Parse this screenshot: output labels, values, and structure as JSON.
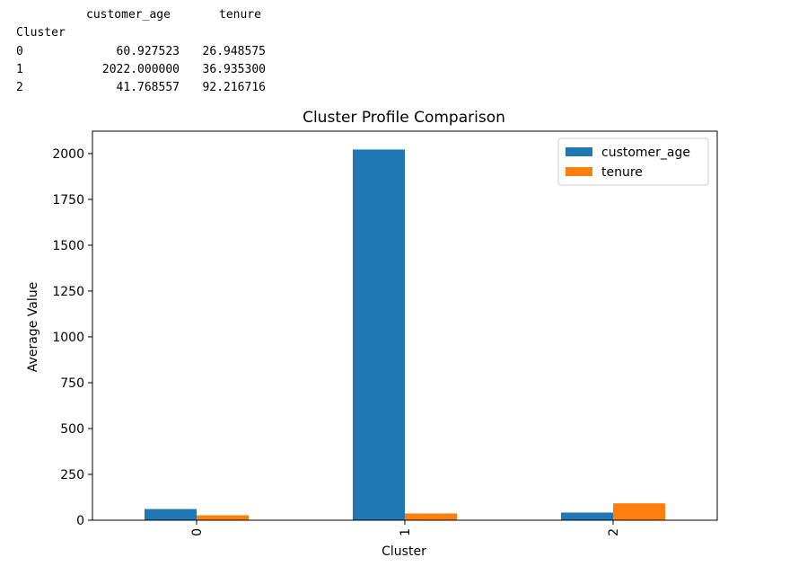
{
  "dataframe": {
    "columns": [
      "customer_age",
      "tenure"
    ],
    "index_name": "Cluster",
    "rows": [
      {
        "index": "0",
        "values": [
          "60.927523",
          "26.948575"
        ]
      },
      {
        "index": "1",
        "values": [
          "2022.000000",
          "36.935300"
        ]
      },
      {
        "index": "2",
        "values": [
          "41.768557",
          "92.216716"
        ]
      }
    ]
  },
  "chart_data": {
    "type": "bar",
    "title": "Cluster Profile Comparison",
    "xlabel": "Cluster",
    "ylabel": "Average Value",
    "categories": [
      "0",
      "1",
      "2"
    ],
    "series": [
      {
        "name": "customer_age",
        "color": "#1f77b4",
        "values": [
          60.927523,
          2022.0,
          41.768557
        ]
      },
      {
        "name": "tenure",
        "color": "#ff7f0e",
        "values": [
          26.948575,
          36.9353,
          92.216716
        ]
      }
    ],
    "ylim": [
      0,
      2122.1
    ],
    "yticks": [
      0,
      250,
      500,
      750,
      1000,
      1250,
      1500,
      1750,
      2000
    ],
    "xtick_rotation": 90,
    "grid": false,
    "legend_position": "top-right"
  }
}
